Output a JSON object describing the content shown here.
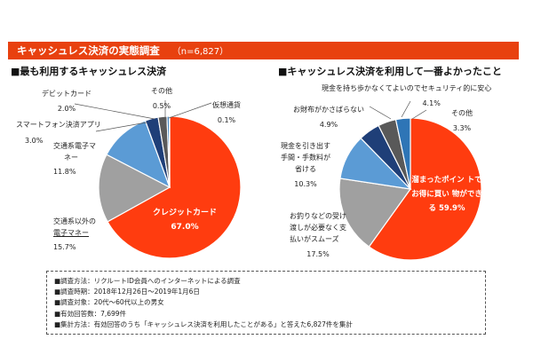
{
  "header": {
    "title": "キャッシュレス決済の実態調査",
    "sample": "（n=6,827）"
  },
  "colors": {
    "header_bg": "#e8410f",
    "red": "#ff3c0f",
    "gray": "#a0a0a0",
    "blue": "#5b9bd5",
    "navy": "#1f3f78",
    "dark_gray": "#595959",
    "teal": "#2e75b6"
  },
  "chart_data": [
    {
      "type": "pie",
      "title": "■最も利用するキャッシュレス決済",
      "slices": [
        {
          "label": "クレジットカード",
          "value": 67.0,
          "value_label": "67.0%",
          "color": "#ff3c0f"
        },
        {
          "label": "交通系以外の電子マネー",
          "value": 15.7,
          "value_label": "15.7%",
          "color": "#a0a0a0"
        },
        {
          "label": "交通系電子マネー",
          "value": 11.8,
          "value_label": "11.8%",
          "color": "#5b9bd5"
        },
        {
          "label": "スマートフォン決済アプリ",
          "value": 3.0,
          "value_label": "3.0%",
          "color": "#1f3f78"
        },
        {
          "label": "デビットカード",
          "value": 2.0,
          "value_label": "2.0%",
          "color": "#595959"
        },
        {
          "label": "その他",
          "value": 0.5,
          "value_label": "0.5%",
          "color": "#2e75b6"
        },
        {
          "label": "仮想通貨",
          "value": 0.1,
          "value_label": "0.1%",
          "color": "#404040"
        }
      ]
    },
    {
      "type": "pie",
      "title": "■キャッシュレス決済を利用して一番よかったこと",
      "slices": [
        {
          "label": "溜まったポイントでお得に買い物ができる",
          "value": 59.9,
          "value_label": "59.9%",
          "color": "#ff3c0f"
        },
        {
          "label": "お釣りなどの受け渡しが必要なく支払いがスムーズ",
          "value": 17.5,
          "value_label": "17.5%",
          "color": "#a0a0a0"
        },
        {
          "label": "現金を引き出す手間・手数料が省ける",
          "value": 10.3,
          "value_label": "10.3%",
          "color": "#5b9bd5"
        },
        {
          "label": "お財布がかさばらない",
          "value": 4.9,
          "value_label": "4.9%",
          "color": "#1f3f78"
        },
        {
          "label": "現金を持ち歩かなくてよいのでセキュリティ的に安心",
          "value": 4.1,
          "value_label": "4.1%",
          "color": "#595959"
        },
        {
          "label": "その他",
          "value": 3.3,
          "value_label": "3.3%",
          "color": "#2e75b6"
        }
      ]
    }
  ],
  "left_labels": {
    "credit_1": "クレジットカード",
    "credit_v": "67.0%",
    "other_emoney_1": "交通系以外の",
    "other_emoney_2": "電子マネー",
    "other_emoney_v": "15.7%",
    "transit_1": "交通系電子マ",
    "transit_2": "ネー",
    "transit_v": "11.8%",
    "smartphone": "スマートフォン決済アプリ",
    "smartphone_v": "3.0%",
    "debit": "デビットカード",
    "debit_v": "2.0%",
    "other": "その他",
    "other_v": "0.5%",
    "crypto": "仮想通貨",
    "crypto_v": "0.1%"
  },
  "right_labels": {
    "points_1": "溜まったポイン",
    "points_2": "トでお得に買い",
    "points_3": "物ができる",
    "points_v": "59.9%",
    "change_1": "お釣りなどの受け",
    "change_2": "渡しが必要なく支",
    "change_3": "払いがスムーズ",
    "change_v": "17.5%",
    "cash_1": "現金を引き出す",
    "cash_2": "手間・手数料が",
    "cash_3": "省ける",
    "cash_v": "10.3%",
    "wallet": "お財布がかさばらない",
    "wallet_v": "4.9%",
    "security": "現金を持ち歩かなくてよいのでセキュリティ的に安心",
    "security_v": "4.1%",
    "other": "その他",
    "other_v": "3.3%"
  },
  "notes": [
    "■調査方法：リクルートID会員へのインターネットによる調査",
    "■調査時期：2018年12月26日～2019年1月6日",
    "■調査対象：20代～60代以上の男女",
    "■有効回答数：7,699件",
    "■集計方法：有効回答のうち「キャッシュレス決済を利用したことがある」と答えた6,827件を集計"
  ]
}
